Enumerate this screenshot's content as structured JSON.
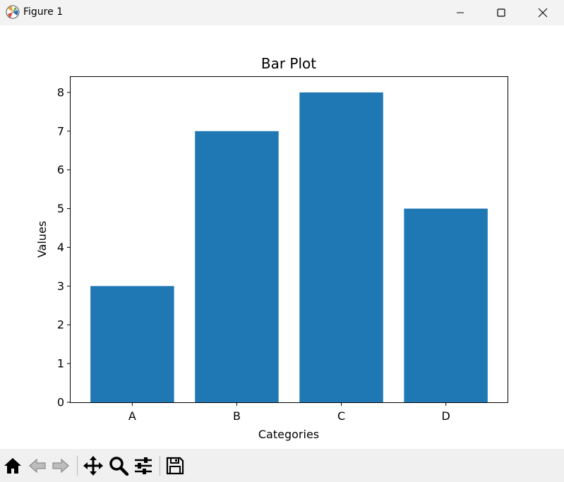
{
  "window": {
    "title": "Figure 1",
    "icon": "matplotlib-icon",
    "controls": [
      "minimize-icon",
      "maximize-icon",
      "close-icon"
    ]
  },
  "chart_data": {
    "type": "bar",
    "title": "Bar Plot",
    "xlabel": "Categories",
    "ylabel": "Values",
    "categories": [
      "A",
      "B",
      "C",
      "D"
    ],
    "values": [
      3,
      7,
      8,
      5
    ],
    "ylim": [
      0,
      8.4
    ],
    "yticks": [
      0,
      1,
      2,
      3,
      4,
      5,
      6,
      7,
      8
    ],
    "bar_color": "#1f77b4",
    "grid": false,
    "legend": "none"
  },
  "toolbar": {
    "items": [
      "home-icon",
      "back-icon",
      "forward-icon",
      "pan-icon",
      "zoom-icon",
      "configure-subplots-icon",
      "save-icon"
    ]
  }
}
